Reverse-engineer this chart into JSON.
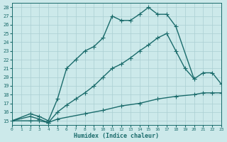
{
  "xlabel": "Humidex (Indice chaleur)",
  "bg_color": "#cce9ea",
  "grid_color": "#aacfd2",
  "line_color": "#1a6b6b",
  "xlim": [
    0,
    23
  ],
  "ylim": [
    14.5,
    28.5
  ],
  "xticks": [
    0,
    1,
    2,
    3,
    4,
    5,
    6,
    7,
    8,
    9,
    10,
    11,
    12,
    13,
    14,
    15,
    16,
    17,
    18,
    19,
    20,
    21,
    22,
    23
  ],
  "yticks": [
    15,
    16,
    17,
    18,
    19,
    20,
    21,
    22,
    23,
    24,
    25,
    26,
    27,
    28
  ],
  "line1_x": [
    0,
    2,
    3,
    4,
    5,
    6,
    7,
    8,
    9,
    10,
    11,
    12,
    13,
    14,
    15,
    16,
    17,
    18,
    20
  ],
  "line1_y": [
    15,
    15.8,
    15.5,
    15.0,
    17.5,
    21.0,
    22.0,
    23.0,
    23.5,
    24.5,
    27.0,
    26.5,
    26.5,
    27.2,
    28.0,
    27.2,
    27.2,
    25.8,
    19.8
  ],
  "line2_x": [
    0,
    2,
    3,
    4,
    5,
    6,
    7,
    8,
    9,
    10,
    11,
    12,
    13,
    14,
    15,
    16,
    17,
    18,
    19,
    20,
    21,
    22,
    23
  ],
  "line2_y": [
    15,
    15.5,
    15.2,
    14.8,
    16.0,
    16.8,
    17.5,
    18.2,
    19.0,
    20.0,
    21.0,
    21.5,
    22.2,
    23.0,
    23.7,
    24.5,
    25.0,
    23.0,
    21.0,
    19.8,
    20.5,
    20.5,
    19.2
  ],
  "line3_x": [
    0,
    2,
    3,
    4,
    5,
    8,
    10,
    12,
    14,
    16,
    18,
    20,
    21,
    22,
    23
  ],
  "line3_y": [
    15,
    15.0,
    15.0,
    14.8,
    15.2,
    15.8,
    16.2,
    16.7,
    17.0,
    17.5,
    17.8,
    18.0,
    18.2,
    18.2,
    18.2
  ],
  "linewidth": 1.0,
  "markersize": 4.5
}
